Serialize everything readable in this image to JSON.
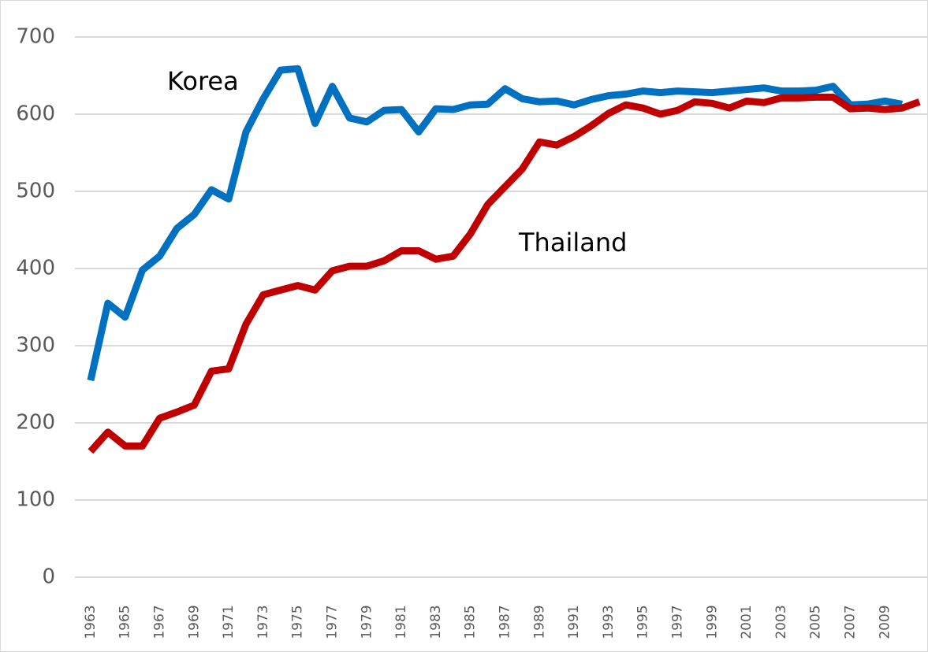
{
  "chart_data": {
    "type": "line",
    "categories": [
      "1963",
      null,
      "1965",
      null,
      "1967",
      null,
      "1969",
      null,
      "1971",
      null,
      "1973",
      null,
      "1975",
      null,
      "1977",
      null,
      "1979",
      null,
      "1981",
      null,
      "1983",
      null,
      "1985",
      null,
      "1987",
      null,
      "1989",
      null,
      "1991",
      null,
      "1993",
      null,
      "1995",
      null,
      "1997",
      null,
      "1999",
      null,
      "2001",
      null,
      "2003",
      null,
      "2005",
      null,
      "2007",
      null,
      "2009",
      null,
      null
    ],
    "series": [
      {
        "name": "Korea",
        "color": "#0070c0",
        "values": [
          255,
          355,
          337,
          398,
          416,
          452,
          470,
          502,
          490,
          577,
          620,
          657,
          659,
          588,
          636,
          595,
          590,
          605,
          606,
          577,
          607,
          606,
          612,
          613,
          633,
          620,
          616,
          617,
          612,
          619,
          624,
          626,
          630,
          628,
          630,
          629,
          628,
          630,
          632,
          634,
          630,
          630,
          631,
          636,
          612,
          613,
          617,
          613,
          null
        ]
      },
      {
        "name": "Thailand",
        "color": "#c00000",
        "values": [
          163,
          188,
          170,
          170,
          206,
          214,
          223,
          267,
          270,
          328,
          366,
          372,
          378,
          372,
          397,
          403,
          403,
          410,
          423,
          423,
          412,
          416,
          445,
          483,
          506,
          529,
          564,
          560,
          571,
          585,
          601,
          612,
          608,
          600,
          605,
          616,
          614,
          608,
          617,
          615,
          621,
          621,
          622,
          622,
          607,
          608,
          606,
          608,
          616
        ]
      }
    ],
    "ylim": [
      0,
      700
    ],
    "yticks": [
      0,
      100,
      200,
      300,
      400,
      500,
      600,
      700
    ],
    "grid": true
  }
}
